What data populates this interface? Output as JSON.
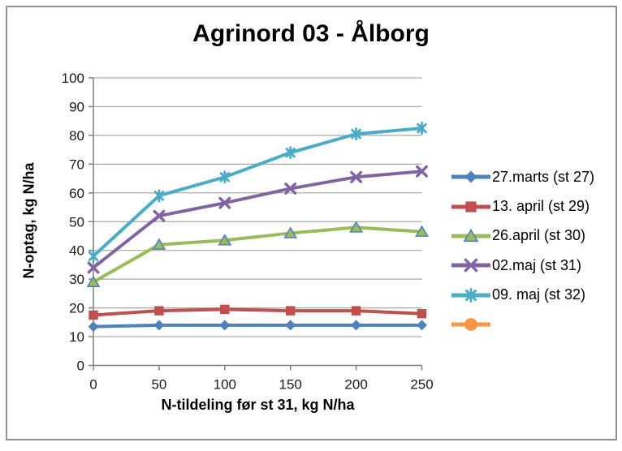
{
  "chart_data": {
    "type": "line",
    "title": "Agrinord 03 - Ålborg",
    "xlabel": "N-tildeling før st 31, kg N/ha",
    "ylabel": "N-optag, kg N/ha",
    "x": [
      0,
      50,
      100,
      150,
      200,
      250
    ],
    "xlim": [
      0,
      250
    ],
    "ylim": [
      0,
      100
    ],
    "xticks": [
      0,
      50,
      100,
      150,
      200,
      250
    ],
    "yticks": [
      0,
      10,
      20,
      30,
      40,
      50,
      60,
      70,
      80,
      90,
      100
    ],
    "grid": true,
    "legend_position": "right",
    "series": [
      {
        "name": "27.marts (st 27)",
        "marker": "diamond",
        "color": "#4F81BD",
        "values": [
          13.5,
          14,
          14,
          14,
          14,
          14
        ]
      },
      {
        "name": "13. april (st 29)",
        "marker": "square",
        "color": "#C0504D",
        "values": [
          17.5,
          19,
          19.5,
          19,
          19,
          18
        ]
      },
      {
        "name": "26.april (st 30)",
        "marker": "triangle",
        "color": "#9BBB59",
        "marker_border": "#4F81BD",
        "values": [
          29,
          42,
          43.5,
          46,
          48,
          46.5
        ]
      },
      {
        "name": "02.maj (st 31)",
        "marker": "x",
        "color": "#8064A2",
        "values": [
          34,
          52,
          56.5,
          61.5,
          65.5,
          67.5
        ]
      },
      {
        "name": "09. maj (st 32)",
        "marker": "asterisk",
        "color": "#4BACC6",
        "values": [
          38,
          59,
          65.5,
          74,
          80.5,
          82.5
        ]
      },
      {
        "name": "",
        "marker": "circle",
        "color": "#F79646",
        "values": []
      }
    ]
  },
  "colors": {
    "background": "#FFFFFF",
    "frame_border": "#8F8F8F",
    "gridline": "#A6A6A6",
    "axis": "#808080",
    "tick_text": "#1A1A1A",
    "title_text": "#000000"
  }
}
